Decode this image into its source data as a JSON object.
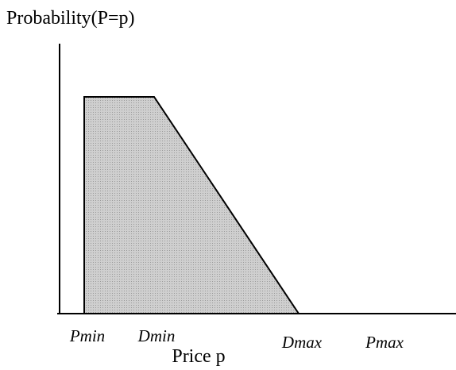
{
  "y_axis_label": "Probability(P=p)",
  "x_axis_label": "Price p",
  "x_labels": [
    "Pmin",
    "Dmin",
    "Dmax",
    "Pmax"
  ]
}
